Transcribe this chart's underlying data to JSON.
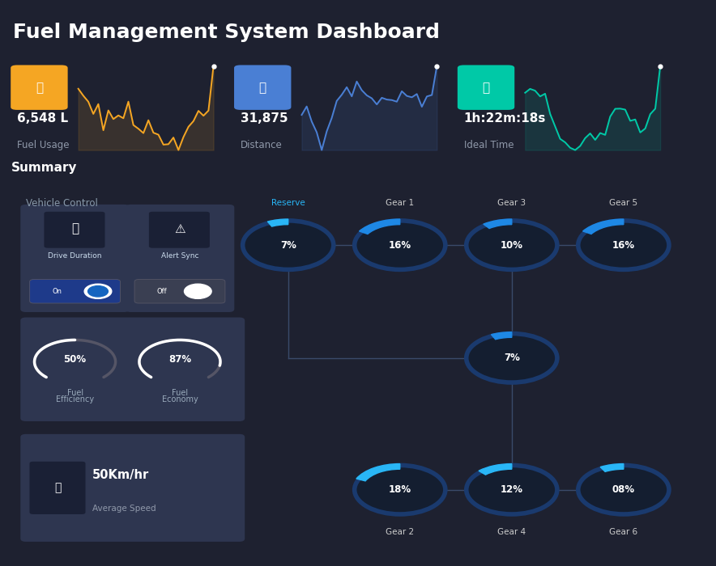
{
  "bg_color": "#1e2130",
  "card_bg": "#252b3b",
  "card_bg2": "#2a3045",
  "title": "Fuel Management System Dashboard",
  "summary_label": "Summary",
  "vehicle_control_label": "Vehicle Control",
  "stat_cards": [
    {
      "value": "6,548 L",
      "label": "Fuel Usage",
      "icon_color": "#f5a623",
      "line_color": "#f5a623"
    },
    {
      "value": "31,875",
      "label": "Distance",
      "icon_color": "#4a7fd4",
      "line_color": "#4a7fd4"
    },
    {
      "value": "1h:22m:18s",
      "label": "Ideal Time",
      "icon_color": "#00c9a7",
      "line_color": "#00c9a7"
    }
  ],
  "gauges_left": [
    {
      "pct": 50,
      "label1": "Fuel",
      "label2": "Efficiency"
    },
    {
      "pct": 87,
      "label1": "Fuel",
      "label2": "Economy"
    }
  ],
  "speed_value": "50Km/hr",
  "speed_label": "Average Speed",
  "gear_nodes": [
    {
      "id": "reserve",
      "label": "Reserve",
      "pct": "7%",
      "col": 0,
      "row": 0,
      "arc_color": "#29b6f6",
      "label_color": "#29b6f6",
      "ring_color": "#1a3a6e"
    },
    {
      "id": "gear1",
      "label": "Gear 1",
      "pct": "16%",
      "col": 1,
      "row": 0,
      "arc_color": "#1e88e5",
      "label_color": "#cccccc",
      "ring_color": "#1a3a6e"
    },
    {
      "id": "gear3",
      "label": "Gear 3",
      "pct": "10%",
      "col": 2,
      "row": 0,
      "arc_color": "#1e88e5",
      "label_color": "#cccccc",
      "ring_color": "#1a3a6e"
    },
    {
      "id": "gear5",
      "label": "Gear 5",
      "pct": "16%",
      "col": 3,
      "row": 0,
      "arc_color": "#1e88e5",
      "label_color": "#cccccc",
      "ring_color": "#1a3a6e"
    },
    {
      "id": "mid",
      "label": "",
      "pct": "7%",
      "col": 2,
      "row": 1,
      "arc_color": "#1e88e5",
      "label_color": "#cccccc",
      "ring_color": "#1a3a6e"
    },
    {
      "id": "gear2",
      "label": "Gear 2",
      "pct": "18%",
      "col": 1,
      "row": 2,
      "arc_color": "#29b6f6",
      "label_color": "#cccccc",
      "ring_color": "#1a3a6e"
    },
    {
      "id": "gear4",
      "label": "Gear 4",
      "pct": "12%",
      "col": 2,
      "row": 2,
      "arc_color": "#29b6f6",
      "label_color": "#cccccc",
      "ring_color": "#1a3a6e"
    },
    {
      "id": "gear6",
      "label": "Gear 6",
      "pct": "08%",
      "col": 3,
      "row": 2,
      "arc_color": "#29b6f6",
      "label_color": "#cccccc",
      "ring_color": "#1a3a6e"
    }
  ],
  "sparkline_seeds": [
    1,
    8,
    15
  ],
  "conn_color": "#3a4a6a"
}
